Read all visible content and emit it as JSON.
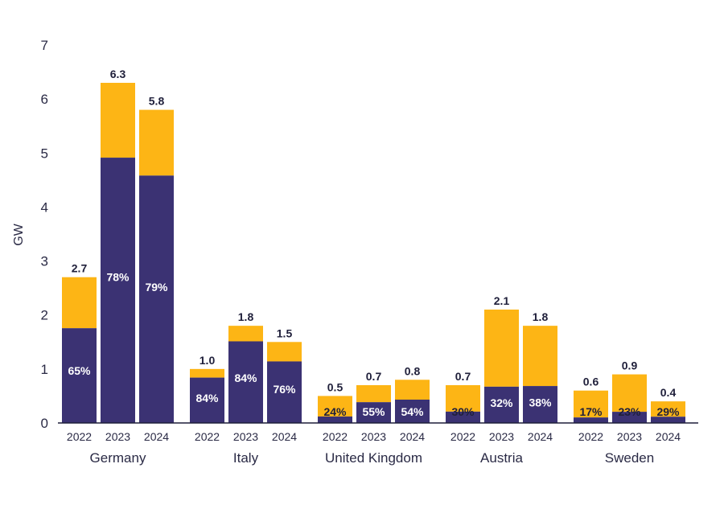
{
  "chart_data": {
    "type": "bar",
    "stacked": true,
    "ylabel": "GW",
    "ylim": [
      0,
      7
    ],
    "yticks": [
      "0",
      "1",
      "2",
      "3",
      "4",
      "5",
      "6",
      "7"
    ],
    "colors": {
      "lower": "#3b3273",
      "upper": "#fdb515"
    },
    "groups": [
      {
        "name": "Germany",
        "bars": [
          {
            "year": "2022",
            "total": 2.7,
            "total_label": "2.7",
            "share": 0.65,
            "share_label": "65%"
          },
          {
            "year": "2023",
            "total": 6.3,
            "total_label": "6.3",
            "share": 0.78,
            "share_label": "78%"
          },
          {
            "year": "2024",
            "total": 5.8,
            "total_label": "5.8",
            "share": 0.79,
            "share_label": "79%"
          }
        ]
      },
      {
        "name": "Italy",
        "bars": [
          {
            "year": "2022",
            "total": 1.0,
            "total_label": "1.0",
            "share": 0.84,
            "share_label": "84%"
          },
          {
            "year": "2023",
            "total": 1.8,
            "total_label": "1.8",
            "share": 0.84,
            "share_label": "84%"
          },
          {
            "year": "2024",
            "total": 1.5,
            "total_label": "1.5",
            "share": 0.76,
            "share_label": "76%"
          }
        ]
      },
      {
        "name": "United Kingdom",
        "bars": [
          {
            "year": "2022",
            "total": 0.5,
            "total_label": "0.5",
            "share": 0.24,
            "share_label": "24%"
          },
          {
            "year": "2023",
            "total": 0.7,
            "total_label": "0.7",
            "share": 0.55,
            "share_label": "55%"
          },
          {
            "year": "2024",
            "total": 0.8,
            "total_label": "0.8",
            "share": 0.54,
            "share_label": "54%"
          }
        ]
      },
      {
        "name": "Austria",
        "bars": [
          {
            "year": "2022",
            "total": 0.7,
            "total_label": "0.7",
            "share": 0.3,
            "share_label": "30%"
          },
          {
            "year": "2023",
            "total": 2.1,
            "total_label": "2.1",
            "share": 0.32,
            "share_label": "32%"
          },
          {
            "year": "2024",
            "total": 1.8,
            "total_label": "1.8",
            "share": 0.38,
            "share_label": "38%"
          }
        ]
      },
      {
        "name": "Sweden",
        "bars": [
          {
            "year": "2022",
            "total": 0.6,
            "total_label": "0.6",
            "share": 0.17,
            "share_label": "17%"
          },
          {
            "year": "2023",
            "total": 0.9,
            "total_label": "0.9",
            "share": 0.23,
            "share_label": "23%"
          },
          {
            "year": "2024",
            "total": 0.4,
            "total_label": "0.4",
            "share": 0.29,
            "share_label": "29%"
          }
        ]
      }
    ]
  }
}
